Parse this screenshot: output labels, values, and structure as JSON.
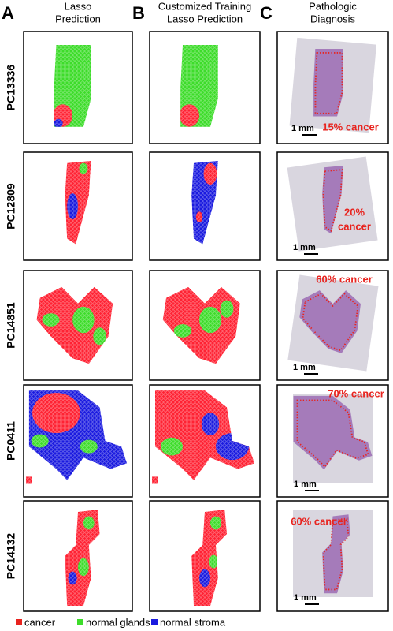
{
  "panels": [
    {
      "letter": "A",
      "title": [
        "Lasso",
        "Prediction"
      ]
    },
    {
      "letter": "B",
      "title": [
        "Customized Training",
        "Lasso Prediction"
      ]
    },
    {
      "letter": "C",
      "title": [
        "Pathologic",
        "Diagnosis"
      ]
    }
  ],
  "rows": [
    {
      "label": "PC13336",
      "annotation": [
        "15% cancer"
      ],
      "scale": "1 mm"
    },
    {
      "label": "PC12809",
      "annotation": [
        "20%",
        "cancer"
      ],
      "scale": "1 mm"
    },
    {
      "label": "PC14851",
      "annotation": [
        "60% cancer"
      ],
      "scale": "1 mm"
    },
    {
      "label": "PC0411",
      "annotation": [
        "70% cancer"
      ],
      "scale": "1 mm"
    },
    {
      "label": "PC14132",
      "annotation": [
        "60% cancer"
      ],
      "scale": "1 mm"
    }
  ],
  "legend": [
    {
      "name": "cancer",
      "color": "#e8231e"
    },
    {
      "name": "normal glands",
      "color": "#3ddc2a"
    },
    {
      "name": "normal stroma",
      "color": "#1a1adf"
    }
  ]
}
